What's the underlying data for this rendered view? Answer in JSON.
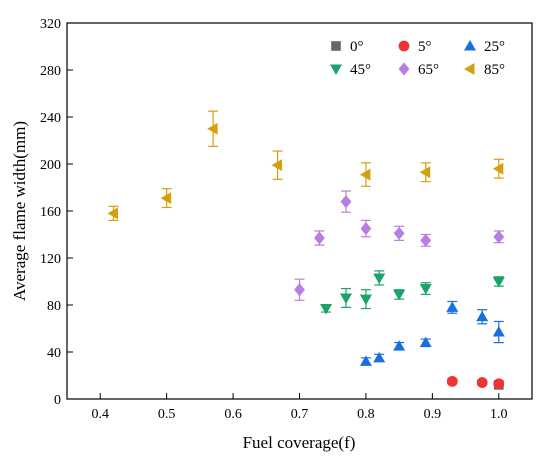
{
  "chart_data": {
    "type": "scatter",
    "title": "",
    "xlabel": "Fuel coverage(f)",
    "ylabel": "Average flame width(mm)",
    "xlim": [
      0.35,
      1.05
    ],
    "ylim": [
      0,
      320
    ],
    "xticks": [
      0.4,
      0.5,
      0.6,
      0.7,
      0.8,
      0.9,
      1.0
    ],
    "xtick_labels": [
      "0.4",
      "0.5",
      "0.6",
      "0.7",
      "0.8",
      "0.9",
      "1.0"
    ],
    "yticks": [
      0,
      40,
      80,
      120,
      160,
      200,
      240,
      280,
      320
    ],
    "ytick_labels": [
      "0",
      "40",
      "80",
      "120",
      "160",
      "200",
      "240",
      "280",
      "320"
    ],
    "grid": false,
    "legend_position": "top-right",
    "series": [
      {
        "name": "0°",
        "marker": "square",
        "color": "#666666",
        "points": [
          {
            "x": 1.0,
            "y": 12,
            "err": 0
          }
        ]
      },
      {
        "name": "5°",
        "marker": "circle",
        "color": "#ee3333",
        "points": [
          {
            "x": 0.93,
            "y": 15,
            "err": 2
          },
          {
            "x": 0.975,
            "y": 14,
            "err": 2
          },
          {
            "x": 1.0,
            "y": 13,
            "err": 2
          }
        ]
      },
      {
        "name": "25°",
        "marker": "triangle-up",
        "color": "#1a6fdf",
        "points": [
          {
            "x": 0.8,
            "y": 32,
            "err": 3
          },
          {
            "x": 0.82,
            "y": 35,
            "err": 3
          },
          {
            "x": 0.85,
            "y": 45,
            "err": 3
          },
          {
            "x": 0.89,
            "y": 48,
            "err": 3
          },
          {
            "x": 0.93,
            "y": 78,
            "err": 5
          },
          {
            "x": 0.975,
            "y": 70,
            "err": 6
          },
          {
            "x": 1.0,
            "y": 57,
            "err": 9
          }
        ]
      },
      {
        "name": "45°",
        "marker": "triangle-down",
        "color": "#1aa36a",
        "points": [
          {
            "x": 0.74,
            "y": 77,
            "err": 3
          },
          {
            "x": 0.77,
            "y": 86,
            "err": 8
          },
          {
            "x": 0.8,
            "y": 85,
            "err": 8
          },
          {
            "x": 0.82,
            "y": 103,
            "err": 6
          },
          {
            "x": 0.85,
            "y": 89,
            "err": 4
          },
          {
            "x": 0.89,
            "y": 94,
            "err": 5
          },
          {
            "x": 1.0,
            "y": 100,
            "err": 4
          }
        ]
      },
      {
        "name": "65°",
        "marker": "diamond",
        "color": "#b97fe0",
        "points": [
          {
            "x": 0.7,
            "y": 93,
            "err": 9
          },
          {
            "x": 0.73,
            "y": 137,
            "err": 6
          },
          {
            "x": 0.77,
            "y": 168,
            "err": 9
          },
          {
            "x": 0.8,
            "y": 145,
            "err": 7
          },
          {
            "x": 0.85,
            "y": 141,
            "err": 6
          },
          {
            "x": 0.89,
            "y": 135,
            "err": 5
          },
          {
            "x": 1.0,
            "y": 138,
            "err": 5
          }
        ]
      },
      {
        "name": "85°",
        "marker": "triangle-left",
        "color": "#d4a00f",
        "points": [
          {
            "x": 0.42,
            "y": 158,
            "err": 6
          },
          {
            "x": 0.5,
            "y": 171,
            "err": 8
          },
          {
            "x": 0.57,
            "y": 230,
            "err": 15
          },
          {
            "x": 0.667,
            "y": 199,
            "err": 12
          },
          {
            "x": 0.8,
            "y": 191,
            "err": 10
          },
          {
            "x": 0.89,
            "y": 193,
            "err": 8
          },
          {
            "x": 1.0,
            "y": 196,
            "err": 8
          }
        ]
      }
    ]
  }
}
